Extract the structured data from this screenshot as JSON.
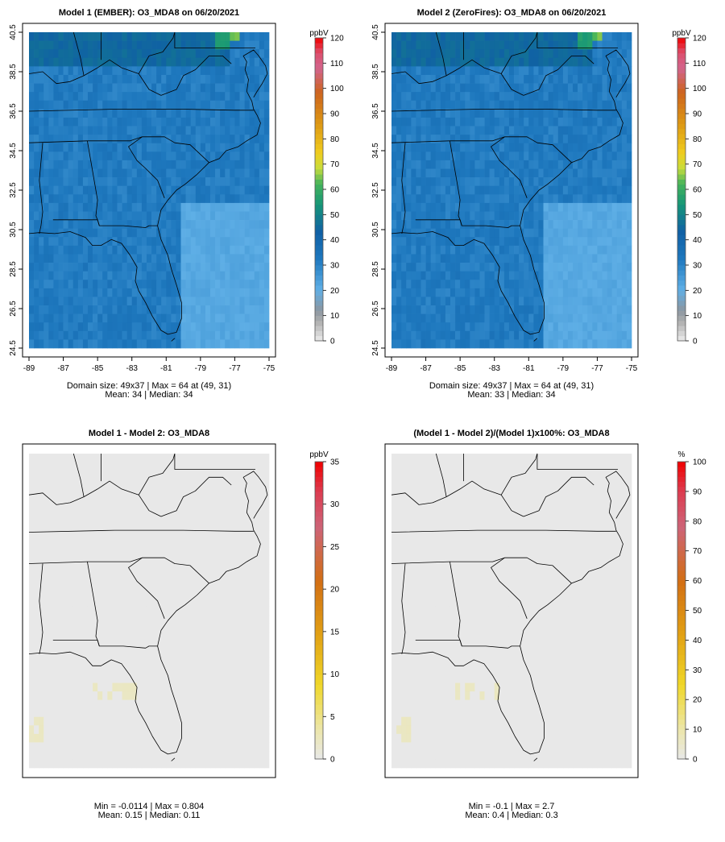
{
  "chart_data": [
    {
      "type": "heatmap",
      "title": "Model 1 (EMBER): O3_MDA8 on 06/20/2021",
      "x_ticks": [
        "-89",
        "-87",
        "-85",
        "-83",
        "-81",
        "-79",
        "-77",
        "-75"
      ],
      "y_ticks": [
        "24.5",
        "26.5",
        "28.5",
        "30.5",
        "32.5",
        "34.5",
        "36.5",
        "38.5",
        "40.5"
      ],
      "xlim": [
        -89,
        -75
      ],
      "ylim": [
        24.5,
        40.5
      ],
      "colorbar": {
        "unit": "ppbV",
        "ticks": [
          "0",
          "10",
          "20",
          "30",
          "40",
          "50",
          "60",
          "70",
          "80",
          "90",
          "100",
          "110",
          "120"
        ],
        "range": [
          0,
          120
        ]
      },
      "stats": [
        "Domain size: 49x37 | Max = 64 at (49, 31)",
        "Mean: 34 |  Median: 34"
      ],
      "domain_size": [
        49,
        37
      ],
      "max": 64,
      "max_at": [
        49,
        31
      ],
      "mean": 34,
      "median": 34,
      "background_value": 32,
      "high_regions": [
        {
          "lon": [
            -89,
            -77.2
          ],
          "lat": [
            38.8,
            40.5
          ],
          "value": 45
        },
        {
          "lon": [
            -78.2,
            -77.2
          ],
          "lat": [
            39.6,
            40.5
          ],
          "value": 56
        },
        {
          "lon": [
            -77.2,
            -76.7
          ],
          "lat": [
            40.1,
            40.5
          ],
          "value": 64
        }
      ],
      "low_regions": [
        {
          "lon": [
            -80,
            -75
          ],
          "lat": [
            24.5,
            32
          ],
          "value": 22
        }
      ]
    },
    {
      "type": "heatmap",
      "title": "Model 2 (ZeroFires): O3_MDA8 on 06/20/2021",
      "x_ticks": [
        "-89",
        "-87",
        "-85",
        "-83",
        "-81",
        "-79",
        "-77",
        "-75"
      ],
      "y_ticks": [
        "24.5",
        "26.5",
        "28.5",
        "30.5",
        "32.5",
        "34.5",
        "36.5",
        "38.5",
        "40.5"
      ],
      "xlim": [
        -89,
        -75
      ],
      "ylim": [
        24.5,
        40.5
      ],
      "colorbar": {
        "unit": "ppbV",
        "ticks": [
          "0",
          "10",
          "20",
          "30",
          "40",
          "50",
          "60",
          "70",
          "80",
          "90",
          "100",
          "110",
          "120"
        ],
        "range": [
          0,
          120
        ]
      },
      "stats": [
        "Domain size: 49x37 | Max = 64 at (49, 31)",
        "Mean: 33 |  Median: 34"
      ],
      "domain_size": [
        49,
        37
      ],
      "max": 64,
      "max_at": [
        49,
        31
      ],
      "mean": 33,
      "median": 34,
      "background_value": 32,
      "high_regions": [
        {
          "lon": [
            -89,
            -77.2
          ],
          "lat": [
            38.8,
            40.5
          ],
          "value": 45
        },
        {
          "lon": [
            -78.2,
            -77.2
          ],
          "lat": [
            39.6,
            40.5
          ],
          "value": 56
        },
        {
          "lon": [
            -77.2,
            -76.7
          ],
          "lat": [
            40.1,
            40.5
          ],
          "value": 64
        }
      ],
      "low_regions": [
        {
          "lon": [
            -80,
            -75
          ],
          "lat": [
            24.5,
            32
          ],
          "value": 22
        }
      ]
    },
    {
      "type": "heatmap",
      "title": "Model 1 - Model 2: O3_MDA8",
      "colorbar": {
        "unit": "ppbV",
        "ticks": [
          "0",
          "5",
          "10",
          "15",
          "20",
          "25",
          "30",
          "35"
        ],
        "range": [
          0,
          35
        ]
      },
      "stats": [
        "Min = -0.0114 | Max = 0.804",
        "Mean: 0.15 |  Median: 0.11"
      ],
      "min": -0.0114,
      "max": 0.804,
      "mean": 0.15,
      "median": 0.11
    },
    {
      "type": "heatmap",
      "title": "(Model 1 - Model 2)/(Model 1)x100%: O3_MDA8",
      "colorbar": {
        "unit": "%",
        "ticks": [
          "0",
          "10",
          "20",
          "30",
          "40",
          "50",
          "60",
          "70",
          "80",
          "90",
          "100"
        ],
        "range": [
          0,
          100
        ]
      },
      "stats": [
        "Min = -0.1 | Max = 2.7",
        "Mean: 0.4 |  Median: 0.3"
      ],
      "min": -0.1,
      "max": 2.7,
      "mean": 0.4,
      "median": 0.3
    }
  ]
}
